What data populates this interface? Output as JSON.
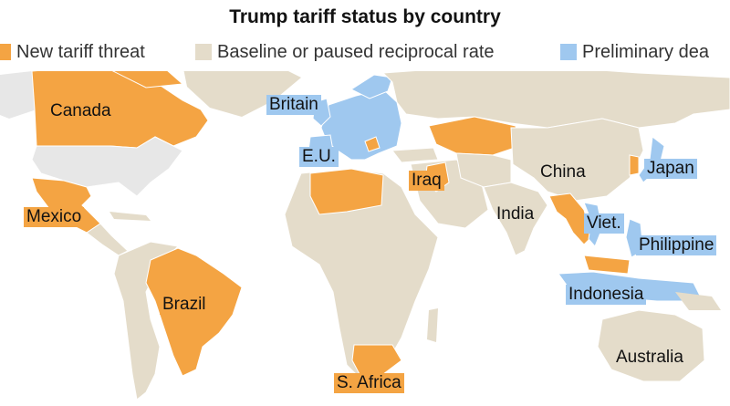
{
  "title": "Trump tariff status by country",
  "legend": [
    {
      "label": "New tariff threat",
      "color": "#f4a443"
    },
    {
      "label": "Baseline or paused reciprocal rate",
      "color": "#e4dcca"
    },
    {
      "label": "Preliminary dea",
      "color": "#9fc8ef"
    }
  ],
  "colors": {
    "land": "#e4dcca",
    "threat": "#f4a443",
    "deal": "#9fc8ef",
    "us": "#e7e7e7",
    "ocean": "#ffffff",
    "border": "#ffffff"
  },
  "labels": {
    "canada": "Canada",
    "mexico": "Mexico",
    "brazil": "Brazil",
    "s_africa": "S. Africa",
    "britain": "Britain",
    "eu": "E.U.",
    "iraq": "Iraq",
    "china": "China",
    "india": "India",
    "japan": "Japan",
    "viet": "Viet.",
    "philippines": "Philippine",
    "indonesia": "Indonesia",
    "australia": "Australia"
  }
}
